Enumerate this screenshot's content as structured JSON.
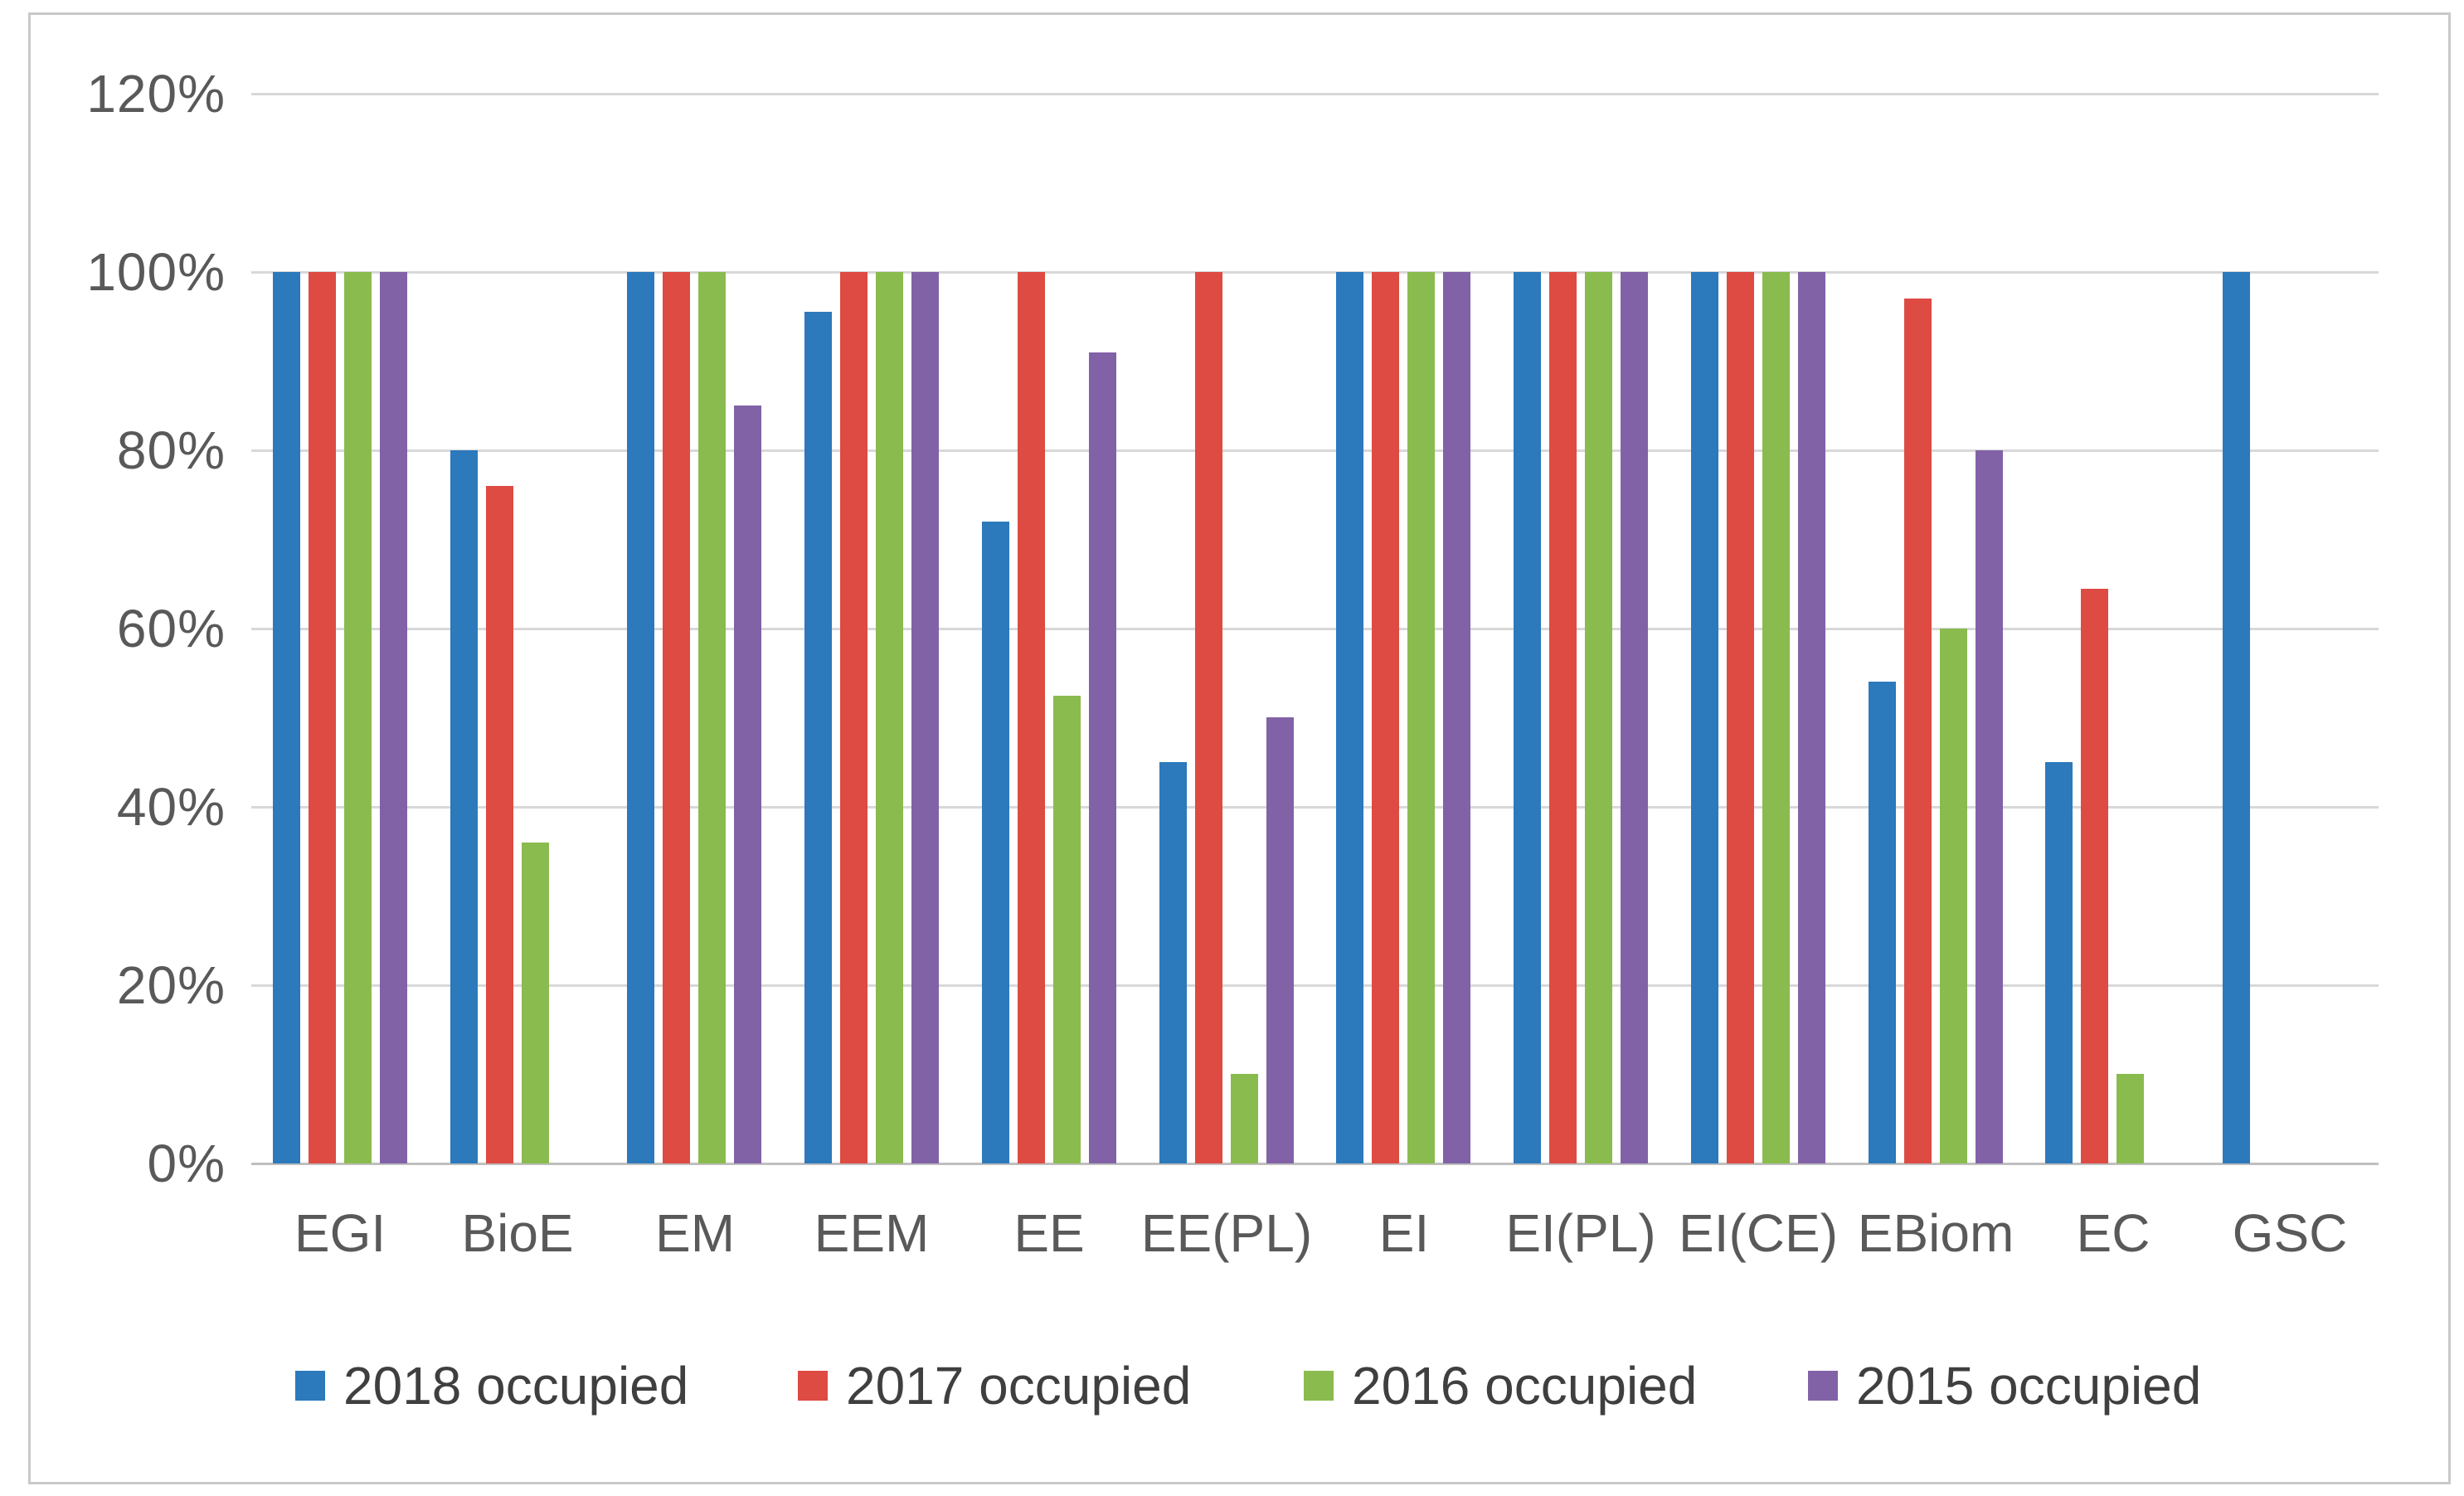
{
  "chart_data": {
    "type": "bar",
    "title": "",
    "categories": [
      "EGI",
      "BioE",
      "EM",
      "EEM",
      "EE",
      "EE(PL)",
      "EI",
      "EI(PL)",
      "EI(CE)",
      "EBiom",
      "EC",
      "GSC"
    ],
    "series": [
      {
        "name": "2018 occupied",
        "color": "#2c79bb",
        "values": [
          100,
          80,
          100,
          95.5,
          72,
          45,
          100,
          100,
          100,
          54,
          45,
          100
        ]
      },
      {
        "name": "2017 occupied",
        "color": "#dd4b43",
        "values": [
          100,
          76,
          100,
          100,
          100,
          100,
          100,
          100,
          100,
          97,
          64.5,
          null
        ]
      },
      {
        "name": "2016 occupied",
        "color": "#8abb4e",
        "values": [
          100,
          36,
          100,
          100,
          52.5,
          10,
          100,
          100,
          100,
          60,
          10,
          null
        ]
      },
      {
        "name": "2015 occupied",
        "color": "#8262a7",
        "values": [
          100,
          null,
          85,
          100,
          91,
          50,
          100,
          100,
          100,
          80,
          null,
          null
        ]
      }
    ],
    "y_axis": {
      "tick_labels": [
        "0%",
        "20%",
        "40%",
        "60%",
        "80%",
        "100%",
        "120%"
      ],
      "tick_values": [
        0,
        20,
        40,
        60,
        80,
        100,
        120
      ],
      "min": 0,
      "max": 120
    },
    "grid": true,
    "legend_position": "bottom"
  },
  "colors": {
    "background": "#ffffff",
    "chart_border": "#c9c9c9",
    "gridline": "#d8d8d8",
    "axis_line": "#bfbfbf",
    "axis_label_text": "#595959",
    "legend_text": "#3f3f3f"
  }
}
